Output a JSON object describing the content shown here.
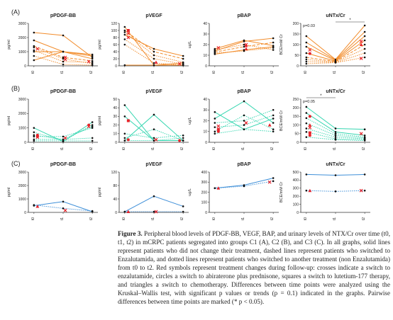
{
  "figure": {
    "row_labels": [
      "(A)",
      "(B)",
      "(C)"
    ],
    "panel_titles": [
      "pPDGF-BB",
      "pVEGF",
      "pBAP",
      "uNTx/Cr"
    ],
    "ylabels": [
      "pg/ml",
      "pg/ml",
      "ug/L",
      "BCE/mM Cr"
    ],
    "time_points": [
      "t0",
      "t1",
      "t2"
    ],
    "annotations": {
      "A3_p": "p=0.03",
      "A3_star": "*",
      "B3_p": "p=0.05",
      "B3_star": "*"
    }
  },
  "caption": {
    "label": "Figure 3.",
    "text": "Peripheral blood levels of PDGF-BB, VEGF, BAP, and urinary levels of NTX/Cr over time (t0, t1, t2) in mCRPC patients segregated into groups C1 (A), C2 (B), and C3 (C). In all graphs, solid lines represent patients who did not change their treatment, dashed lines represent patients who switched to Enzalutamida, and dotted lines represent patients who switched to another treatment (non Enzalutamida) from t0 to t2. Red symbols represent treatment changes during follow-up: crosses indicate a switch to enzalutamide, circles a switch to abiraterone plus prednisone, squares a switch to lutetium-177 therapy, and triangles a switch to chemotherapy. Differences between time points were analyzed using the Kruskal–Wallis test, with significant p values or trends (p = 0.1) indicated in the graphs. Pairwise differences between time points are marked (* p < 0.05)."
  },
  "colors": {
    "A": "#f28c2b",
    "B": "#35d6b0",
    "C": "#3e8fd8",
    "marker": "#e8232a",
    "point": "#111111"
  },
  "chart_data": [
    {
      "type": "line",
      "group": "C1",
      "title": "pPDGF-BB",
      "ylabel": "pg/ml",
      "x": [
        "t0",
        "t1",
        "t2"
      ],
      "yticks": [
        0,
        1000,
        2000,
        3000
      ],
      "ylim": [
        0,
        3000
      ],
      "series": [
        {
          "values": [
            2350,
            2150,
            600
          ],
          "style": "solid"
        },
        {
          "values": [
            1800,
            1000,
            800
          ],
          "style": "solid"
        },
        {
          "values": [
            1000,
            1000,
            700
          ],
          "style": "solid"
        },
        {
          "values": [
            400,
            1000,
            500
          ],
          "style": "solid"
        },
        {
          "values": [
            1400,
            600,
            350
          ],
          "style": "dashed"
        },
        {
          "values": [
            1300,
            500,
            150
          ],
          "style": "dotted"
        },
        {
          "values": [
            1100,
            300,
            250
          ],
          "style": "dotted"
        },
        {
          "values": [
            700,
            100,
            50
          ],
          "style": "dotted"
        }
      ],
      "markers": [
        {
          "x": "t0",
          "y": 1200,
          "shape": "cross"
        },
        {
          "x": "t1",
          "y": 600,
          "shape": "cross"
        },
        {
          "x": "t1",
          "y": 450,
          "shape": "cross"
        },
        {
          "x": "t2",
          "y": 300,
          "shape": "cross"
        }
      ]
    },
    {
      "type": "line",
      "group": "C1",
      "title": "pVEGF",
      "ylabel": "pg/ml",
      "x": [
        "t0",
        "t1",
        "t2"
      ],
      "yticks": [
        0,
        20,
        40,
        60,
        80,
        100,
        120
      ],
      "ylim": [
        0,
        120
      ],
      "series": [
        {
          "values": [
            110,
            2,
            8
          ],
          "style": "solid"
        },
        {
          "values": [
            88,
            48,
            28
          ],
          "style": "solid"
        },
        {
          "values": [
            100,
            40,
            20
          ],
          "style": "dashed"
        },
        {
          "values": [
            95,
            30,
            10
          ],
          "style": "dotted"
        },
        {
          "values": [
            75,
            20,
            5
          ],
          "style": "dotted"
        },
        {
          "values": [
            60,
            8,
            2
          ],
          "style": "dotted"
        },
        {
          "values": [
            2,
            2,
            2
          ],
          "style": "solid"
        }
      ],
      "markers": [
        {
          "x": "t0",
          "y": 100,
          "shape": "square"
        },
        {
          "x": "t0",
          "y": 92,
          "shape": "cross"
        },
        {
          "x": "t0",
          "y": 80,
          "shape": "cross"
        },
        {
          "x": "t1",
          "y": 10,
          "shape": "triangle"
        },
        {
          "x": "t2",
          "y": 6,
          "shape": "cross"
        }
      ]
    },
    {
      "type": "line",
      "group": "C1",
      "title": "pBAP",
      "ylabel": "ug/L",
      "x": [
        "t0",
        "t1",
        "t2"
      ],
      "yticks": [
        0,
        10,
        20,
        30,
        40
      ],
      "ylim": [
        0,
        40
      ],
      "series": [
        {
          "values": [
            14,
            23,
            26
          ],
          "style": "solid"
        },
        {
          "values": [
            11,
            15,
            18
          ],
          "style": "solid"
        },
        {
          "values": [
            16,
            24,
            19
          ],
          "style": "solid"
        },
        {
          "values": [
            13,
            18,
            22
          ],
          "style": "dashed"
        },
        {
          "values": [
            15,
            20,
            15
          ],
          "style": "dotted"
        },
        {
          "values": [
            12,
            14,
            17
          ],
          "style": "dotted"
        }
      ],
      "markers": [
        {
          "x": "t0",
          "y": 17,
          "shape": "cross"
        },
        {
          "x": "t1",
          "y": 16,
          "shape": "triangle"
        },
        {
          "x": "t1",
          "y": 20,
          "shape": "cross"
        },
        {
          "x": "t1",
          "y": 19,
          "shape": "triangle"
        }
      ]
    },
    {
      "type": "line",
      "group": "C1",
      "title": "uNTx/Cr",
      "ylabel": "BCE/mM Cr",
      "x": [
        "t0",
        "t1",
        "t2"
      ],
      "yticks": [
        0,
        50,
        100,
        150,
        200
      ],
      "ylim": [
        0,
        200
      ],
      "p_value": "p=0.03",
      "pairwise": [
        {
          "from": "t1",
          "to": "t2",
          "label": "*"
        }
      ],
      "series": [
        {
          "values": [
            140,
            30,
            190
          ],
          "style": "solid"
        },
        {
          "values": [
            110,
            28,
            160
          ],
          "style": "solid"
        },
        {
          "values": [
            90,
            25,
            140
          ],
          "style": "solid"
        },
        {
          "values": [
            60,
            22,
            120
          ],
          "style": "solid"
        },
        {
          "values": [
            40,
            20,
            100
          ],
          "style": "dashed"
        },
        {
          "values": [
            30,
            18,
            80
          ],
          "style": "dotted"
        },
        {
          "values": [
            20,
            16,
            60
          ],
          "style": "dotted"
        },
        {
          "values": [
            10,
            15,
            40
          ],
          "style": "dotted"
        }
      ],
      "markers": [
        {
          "x": "t0",
          "y": 75,
          "shape": "cross"
        },
        {
          "x": "t0",
          "y": 58,
          "shape": "circle"
        },
        {
          "x": "t2",
          "y": 115,
          "shape": "cross"
        },
        {
          "x": "t2",
          "y": 100,
          "shape": "triangle"
        },
        {
          "x": "t2",
          "y": 35,
          "shape": "cross"
        }
      ]
    },
    {
      "type": "line",
      "group": "C2",
      "title": "pPDGF-BB",
      "ylabel": "pg/ml",
      "x": [
        "t0",
        "t1",
        "t2"
      ],
      "yticks": [
        0,
        1000,
        2000,
        3000
      ],
      "ylim": [
        0,
        3000
      ],
      "series": [
        {
          "values": [
            1000,
            50,
            1400
          ],
          "style": "solid"
        },
        {
          "values": [
            700,
            100,
            1200
          ],
          "style": "dotted"
        },
        {
          "values": [
            500,
            200,
            1100
          ],
          "style": "dotted"
        },
        {
          "values": [
            400,
            400,
            1000
          ],
          "style": "dotted"
        },
        {
          "values": [
            200,
            200,
            300
          ],
          "style": "dotted"
        },
        {
          "values": [
            100,
            100,
            100
          ],
          "style": "dotted"
        }
      ],
      "markers": [
        {
          "x": "t0",
          "y": 500,
          "shape": "circle"
        },
        {
          "x": "t0",
          "y": 400,
          "shape": "circle"
        },
        {
          "x": "t0",
          "y": 350,
          "shape": "cross"
        },
        {
          "x": "t1",
          "y": 300,
          "shape": "cross"
        },
        {
          "x": "t2",
          "y": 1200,
          "shape": "circle"
        },
        {
          "x": "t2",
          "y": 1100,
          "shape": "cross"
        }
      ]
    },
    {
      "type": "line",
      "group": "C2",
      "title": "pVEGF",
      "ylabel": "pg/ml",
      "x": [
        "t0",
        "t1",
        "t2"
      ],
      "yticks": [
        0,
        10,
        20,
        30,
        40,
        50
      ],
      "ylim": [
        0,
        50
      ],
      "series": [
        {
          "values": [
            43,
            2,
            2
          ],
          "style": "solid"
        },
        {
          "values": [
            30,
            2,
            2
          ],
          "style": "solid"
        },
        {
          "values": [
            2,
            32,
            2
          ],
          "style": "solid"
        },
        {
          "values": [
            10,
            5,
            8
          ],
          "style": "dotted"
        },
        {
          "values": [
            5,
            15,
            2
          ],
          "style": "dotted"
        },
        {
          "values": [
            2,
            2,
            5
          ],
          "style": "dotted"
        }
      ],
      "markers": [
        {
          "x": "t0",
          "y": 25,
          "shape": "square"
        },
        {
          "x": "t0",
          "y": 3,
          "shape": "circle"
        },
        {
          "x": "t1",
          "y": 3,
          "shape": "cross"
        },
        {
          "x": "t2",
          "y": 2,
          "shape": "circle"
        }
      ]
    },
    {
      "type": "line",
      "group": "C2",
      "title": "pBAP",
      "ylabel": "ug/L",
      "x": [
        "t0",
        "t1",
        "t2"
      ],
      "yticks": [
        0,
        10,
        20,
        30,
        40
      ],
      "ylim": [
        0,
        40
      ],
      "series": [
        {
          "values": [
            28,
            12,
            22
          ],
          "style": "solid"
        },
        {
          "values": [
            22,
            38,
            18
          ],
          "style": "solid"
        },
        {
          "values": [
            18,
            20,
            30
          ],
          "style": "dotted"
        },
        {
          "values": [
            14,
            16,
            25
          ],
          "style": "dotted"
        },
        {
          "values": [
            10,
            25,
            12
          ],
          "style": "dotted"
        },
        {
          "values": [
            8,
            12,
            10
          ],
          "style": "dotted"
        }
      ],
      "markers": [
        {
          "x": "t0",
          "y": 12,
          "shape": "square"
        },
        {
          "x": "t0",
          "y": 10,
          "shape": "circle"
        },
        {
          "x": "t0",
          "y": 15,
          "shape": "cross"
        },
        {
          "x": "t1",
          "y": 18,
          "shape": "cross"
        },
        {
          "x": "t2",
          "y": 16,
          "shape": "triangle"
        }
      ]
    },
    {
      "type": "line",
      "group": "C2",
      "title": "uNTx/Cr",
      "ylabel": "BCE/mM Cr",
      "x": [
        "t0",
        "t1",
        "t2"
      ],
      "yticks": [
        0,
        50,
        100,
        150,
        200,
        250
      ],
      "ylim": [
        0,
        250
      ],
      "p_value": "p=0.05",
      "pairwise": [
        {
          "from": "t0",
          "to": "t1",
          "label": "*"
        }
      ],
      "series": [
        {
          "values": [
            205,
            80,
            75
          ],
          "style": "solid"
        },
        {
          "values": [
            170,
            60,
            40
          ],
          "style": "solid"
        },
        {
          "values": [
            140,
            50,
            30
          ],
          "style": "dotted"
        },
        {
          "values": [
            110,
            40,
            25
          ],
          "style": "dotted"
        },
        {
          "values": [
            80,
            30,
            20
          ],
          "style": "dotted"
        },
        {
          "values": [
            60,
            20,
            15
          ],
          "style": "dotted"
        },
        {
          "values": [
            30,
            15,
            10
          ],
          "style": "dotted"
        }
      ],
      "markers": [
        {
          "x": "t0",
          "y": 150,
          "shape": "circle"
        },
        {
          "x": "t0",
          "y": 100,
          "shape": "triangle"
        },
        {
          "x": "t0",
          "y": 85,
          "shape": "cross"
        },
        {
          "x": "t0",
          "y": 55,
          "shape": "square"
        },
        {
          "x": "t0",
          "y": 40,
          "shape": "circle"
        },
        {
          "x": "t2",
          "y": 50,
          "shape": "cross"
        }
      ]
    },
    {
      "type": "line",
      "group": "C3",
      "title": "pPDGF-BB",
      "ylabel": "pg/ml",
      "x": [
        "t0",
        "t1",
        "t2"
      ],
      "yticks": [
        0,
        1000,
        2000,
        3000
      ],
      "ylim": [
        0,
        3000
      ],
      "series": [
        {
          "values": [
            500,
            800,
            50
          ],
          "style": "solid"
        },
        {
          "values": [
            550,
            300,
            100
          ],
          "style": "dotted"
        }
      ],
      "markers": [
        {
          "x": "t0",
          "y": 450,
          "shape": "triangle"
        },
        {
          "x": "t1",
          "y": 150,
          "shape": "cross"
        }
      ]
    },
    {
      "type": "line",
      "group": "C3",
      "title": "pVEGF",
      "ylabel": "pg/ml",
      "x": [
        "t0",
        "t1",
        "t2"
      ],
      "yticks": [
        0,
        40,
        80,
        120
      ],
      "ylim": [
        0,
        120
      ],
      "series": [
        {
          "values": [
            2,
            48,
            18
          ],
          "style": "solid"
        },
        {
          "values": [
            2,
            2,
            2
          ],
          "style": "dotted"
        }
      ],
      "markers": [
        {
          "x": "t0",
          "y": 2,
          "shape": "triangle"
        },
        {
          "x": "t1",
          "y": 2,
          "shape": "cross"
        }
      ]
    },
    {
      "type": "line",
      "group": "C3",
      "title": "pBAP",
      "ylabel": "ug/L",
      "x": [
        "t0",
        "t1",
        "t2"
      ],
      "yticks": [
        0,
        100,
        200,
        300,
        400
      ],
      "ylim": [
        0,
        400
      ],
      "series": [
        {
          "values": [
            240,
            270,
            340
          ],
          "style": "solid"
        },
        {
          "values": [
            240,
            260,
            310
          ],
          "style": "dotted"
        }
      ],
      "markers": [
        {
          "x": "t0",
          "y": 240,
          "shape": "triangle"
        },
        {
          "x": "t2",
          "y": 300,
          "shape": "cross"
        }
      ]
    },
    {
      "type": "line",
      "group": "C3",
      "title": "uNTx/Cr",
      "ylabel": "BCE/mM Cr",
      "x": [
        "t0",
        "t1",
        "t2"
      ],
      "yticks": [
        0,
        100,
        200,
        300,
        400,
        500
      ],
      "ylim": [
        0,
        500
      ],
      "series": [
        {
          "values": [
            470,
            460,
            470
          ],
          "style": "solid"
        },
        {
          "values": [
            270,
            260,
            270
          ],
          "style": "dotted"
        }
      ],
      "markers": [
        {
          "x": "t0",
          "y": 270,
          "shape": "triangle"
        },
        {
          "x": "t2",
          "y": 270,
          "shape": "cross"
        }
      ]
    }
  ]
}
